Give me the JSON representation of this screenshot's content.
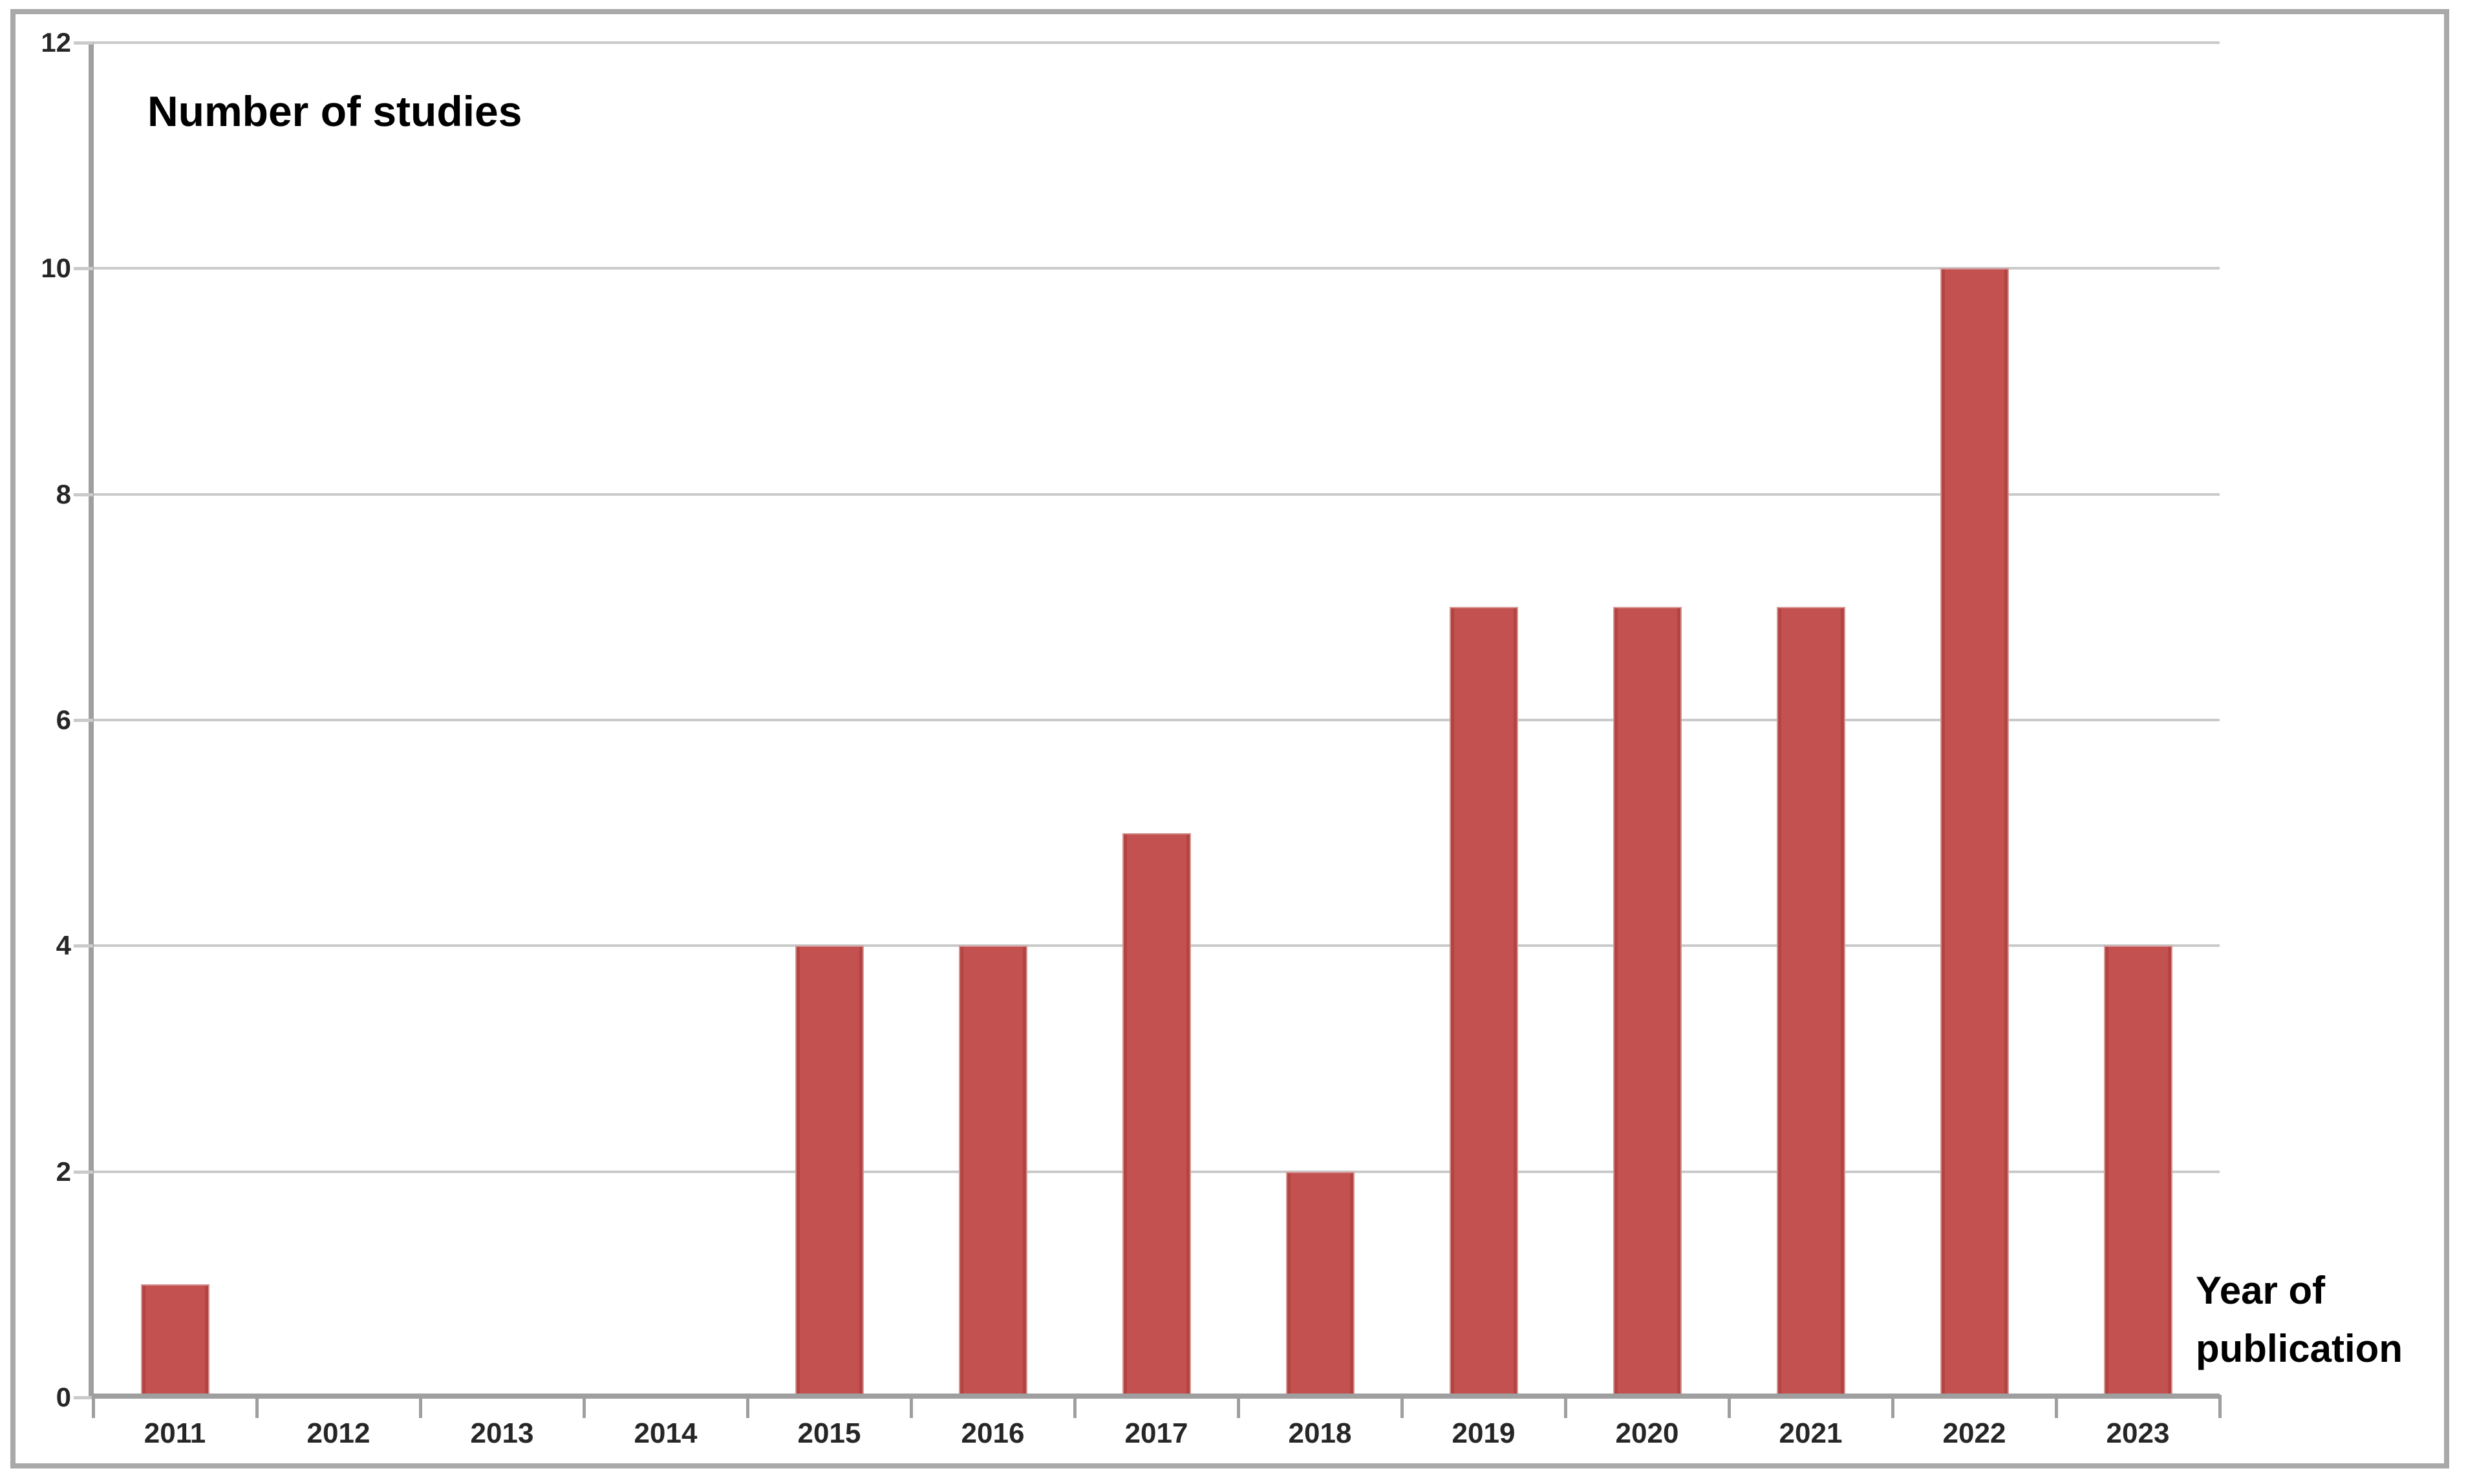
{
  "figure": {
    "background": "#ffffff",
    "border_color": "#a9a9a9"
  },
  "chart_data": {
    "type": "bar",
    "title": "Number of studies",
    "xlabel": "Year of publication",
    "ylabel": "Number of studies",
    "categories": [
      "2011",
      "2012",
      "2013",
      "2014",
      "2015",
      "2016",
      "2017",
      "2018",
      "2019",
      "2020",
      "2021",
      "2022",
      "2023"
    ],
    "values": [
      1,
      0,
      0,
      0,
      4,
      4,
      5,
      2,
      7,
      7,
      7,
      10,
      4
    ],
    "ylim": [
      0,
      12
    ],
    "yticks": [
      0,
      2,
      4,
      6,
      8,
      10,
      12
    ],
    "grid": "horizontal",
    "legend": "none",
    "bar_color": "#c25150",
    "bar_edge_color": "#b34442",
    "bar_rim_color": "#d59593",
    "gridline_color": "#cacaca",
    "axis_color": "#9f9f9f",
    "tick_label_color": "#262626"
  }
}
